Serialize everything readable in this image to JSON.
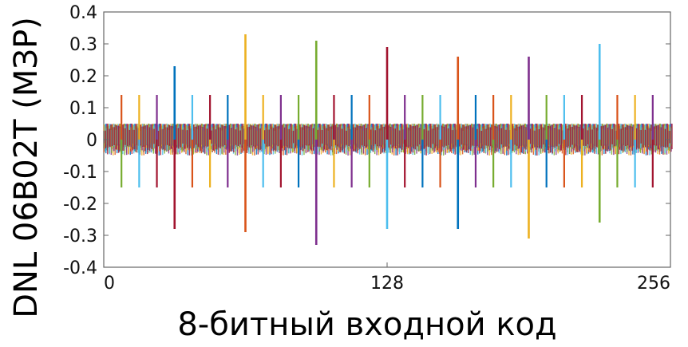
{
  "chart_data": {
    "type": "line",
    "xlabel": "8-битный входной код",
    "ylabel": "DNL 06B02T (МЗР)",
    "xlim": [
      0,
      256
    ],
    "ylim": [
      -0.4,
      0.4
    ],
    "x_ticks": [
      "0",
      "128",
      "256"
    ],
    "y_ticks": [
      "0.4",
      "0.3",
      "0.2",
      "0.1",
      "0",
      "-0.1",
      "-0.2",
      "-0.3",
      "-0.4"
    ],
    "grid": false,
    "colors": [
      "#0072bd",
      "#d95319",
      "#edb120",
      "#7e2f8e",
      "#77ac30",
      "#4dbeee",
      "#a2142f"
    ],
    "spike_pattern": {
      "period": 8,
      "positive_amplitude": 0.14,
      "negative_amplitude": -0.15,
      "band_amplitude": 0.05
    },
    "major_spikes": [
      {
        "x": 32,
        "max": 0.23,
        "min": -0.28
      },
      {
        "x": 64,
        "max": 0.33,
        "min": -0.29
      },
      {
        "x": 96,
        "max": 0.31,
        "min": -0.33
      },
      {
        "x": 128,
        "max": 0.29,
        "min": -0.28
      },
      {
        "x": 160,
        "max": 0.26,
        "min": -0.28
      },
      {
        "x": 192,
        "max": 0.26,
        "min": -0.31
      },
      {
        "x": 224,
        "max": 0.3,
        "min": -0.26
      }
    ]
  }
}
